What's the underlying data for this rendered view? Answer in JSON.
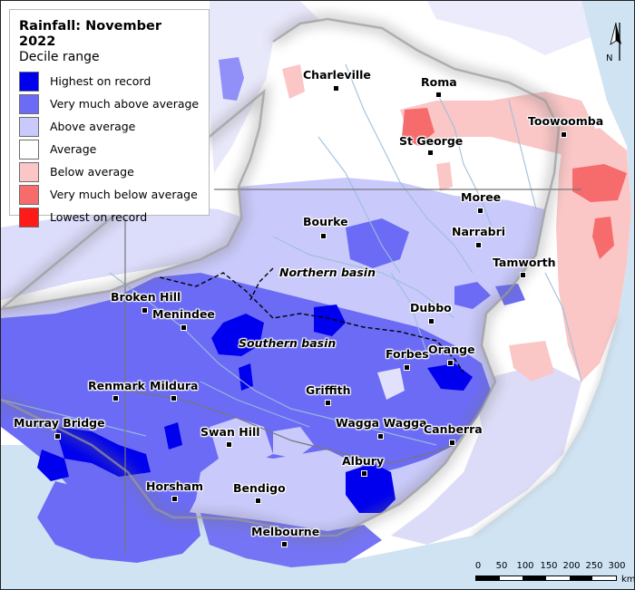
{
  "legend": {
    "title": "Rainfall: November 2022",
    "subtitle": "Decile range",
    "items": [
      {
        "label": "Highest on record",
        "color": "#0000ee"
      },
      {
        "label": "Very much above average",
        "color": "#6b6bf6"
      },
      {
        "label": "Above average",
        "color": "#c9c9fb"
      },
      {
        "label": "Average",
        "color": "#ffffff"
      },
      {
        "label": "Below average",
        "color": "#fbc6c6"
      },
      {
        "label": "Very much below average",
        "color": "#f66b6b"
      },
      {
        "label": "Lowest on record",
        "color": "#ff1a1a"
      }
    ]
  },
  "places": {
    "charleville": "Charleville",
    "roma": "Roma",
    "toowoomba": "Toowoomba",
    "st_george": "St George",
    "moree": "Moree",
    "bourke": "Bourke",
    "narrabri": "Narrabri",
    "tamworth": "Tamworth",
    "broken_hill": "Broken Hill",
    "menindee": "Menindee",
    "dubbo": "Dubbo",
    "orange": "Orange",
    "forbes": "Forbes",
    "renmark": "Renmark",
    "mildura": "Mildura",
    "griffith": "Griffith",
    "murray_bridge": "Murray Bridge",
    "swan_hill": "Swan Hill",
    "wagga_wagga": "Wagga Wagga",
    "canberra": "Canberra",
    "albury": "Albury",
    "horsham": "Horsham",
    "bendigo": "Bendigo",
    "melbourne": "Melbourne"
  },
  "basins": {
    "northern": "Northern basin",
    "southern": "Southern basin"
  },
  "scale_bar": {
    "ticks": [
      "0",
      "50",
      "100",
      "150",
      "200",
      "250",
      "300"
    ],
    "unit": "km"
  },
  "north_arrow": {
    "label": "N",
    "icon": "north-arrow-icon"
  },
  "colors": {
    "ocean": "#cfe3f3",
    "land_outside": "#ffffff",
    "rivers": "#9dbfdc"
  }
}
